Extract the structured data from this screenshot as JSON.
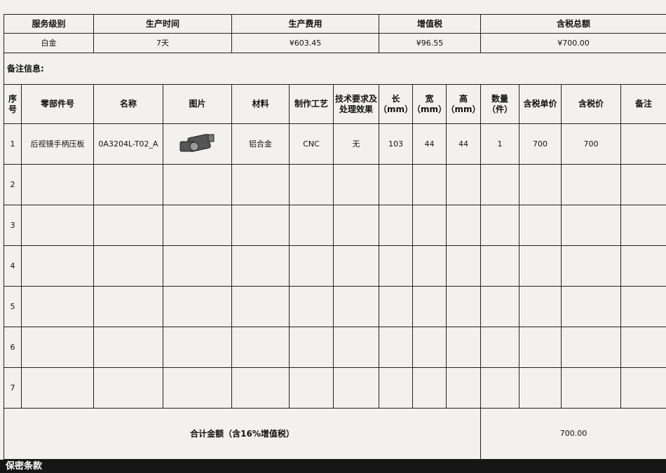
{
  "summary": {
    "headers": [
      "服务级别",
      "生产时间",
      "生产费用",
      "增值税",
      "含税总额"
    ],
    "values": [
      "白金",
      "7天",
      "¥603.45",
      "¥96.55",
      "¥700.00"
    ]
  },
  "remarks_label": "备注信息:",
  "items": {
    "headers": [
      "序号",
      "零部件号",
      "名称",
      "图片",
      "材料",
      "制作工艺",
      "技术要求及处理效果",
      "长（mm）",
      "宽（mm）",
      "高（mm）",
      "数量（件）",
      "含税单价",
      "含税价",
      "备注"
    ],
    "rows": [
      [
        "1",
        "后视镜手柄压板",
        "0A3204L-T02_A",
        "铝合金",
        "CNC",
        "无",
        "103",
        "44",
        "44",
        "1",
        "700",
        "700"
      ],
      [
        "2"
      ],
      [
        "3"
      ],
      [
        "4"
      ],
      [
        "5"
      ],
      [
        "6"
      ],
      [
        "7"
      ]
    ]
  },
  "total": {
    "label": "合计金额（含16%增值税）",
    "value": "700.00"
  },
  "confidentiality_title": "保密条款"
}
